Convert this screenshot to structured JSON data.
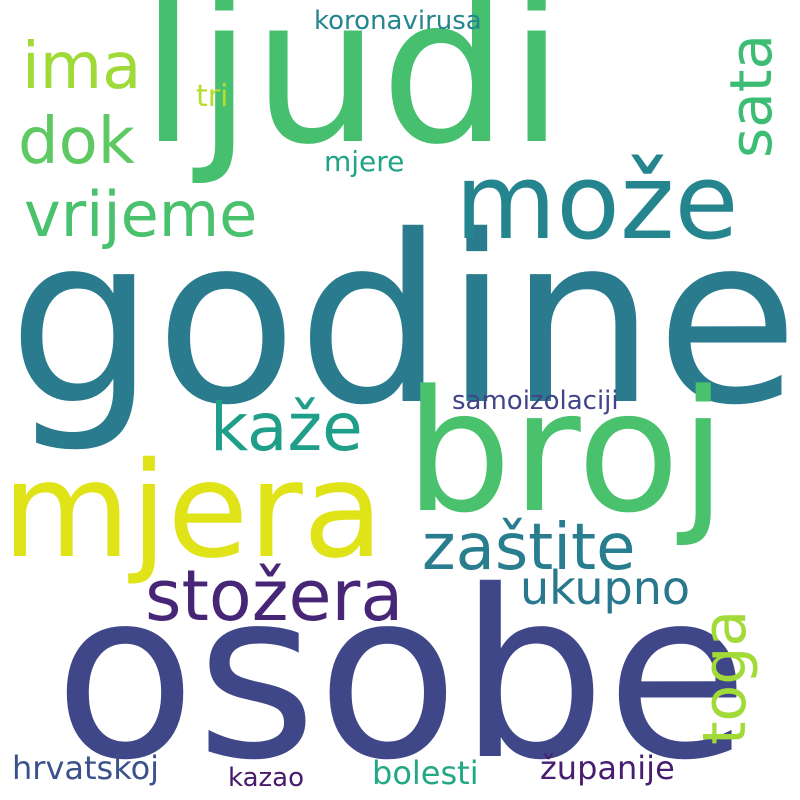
{
  "words": {
    "godine": {
      "text": "godine",
      "color": "#2a7b8e"
    },
    "osobe": {
      "text": "osobe",
      "color": "#404788"
    },
    "ljudi": {
      "text": "ljudi",
      "color": "#46c06f"
    },
    "broj": {
      "text": "broj",
      "color": "#4ac16d"
    },
    "mjera": {
      "text": "mjera",
      "color": "#dfe318"
    },
    "moze": {
      "text": "može",
      "color": "#25858e"
    },
    "stozera": {
      "text": "stožera",
      "color": "#482677"
    },
    "zastite": {
      "text": "zaštite",
      "color": "#287d8e"
    },
    "toga": {
      "text": "toga",
      "color": "#a2da37"
    },
    "kaze": {
      "text": "kaže",
      "color": "#1f9e89"
    },
    "vrijeme": {
      "text": "vrijeme",
      "color": "#4ac16d"
    },
    "ima": {
      "text": "ima",
      "color": "#a0da39"
    },
    "dok": {
      "text": "dok",
      "color": "#5ec962"
    },
    "sata": {
      "text": "sata",
      "color": "#3dbc74"
    },
    "ukupno": {
      "text": "ukupno",
      "color": "#2a788e"
    },
    "zupanije": {
      "text": "županije",
      "color": "#481f70"
    },
    "hrvatskoj": {
      "text": "hrvatskoj",
      "color": "#3b518b"
    },
    "bolesti": {
      "text": "bolesti",
      "color": "#22a884"
    },
    "samoizolaciji": {
      "text": "samoizolaciji",
      "color": "#414487"
    },
    "koronavirusa": {
      "text": "koronavirusa",
      "color": "#25858e"
    },
    "mjere": {
      "text": "mjere",
      "color": "#20a386"
    },
    "tri": {
      "text": "tri",
      "color": "#b5de2b"
    },
    "kazao": {
      "text": "kazao",
      "color": "#481a6c"
    }
  }
}
